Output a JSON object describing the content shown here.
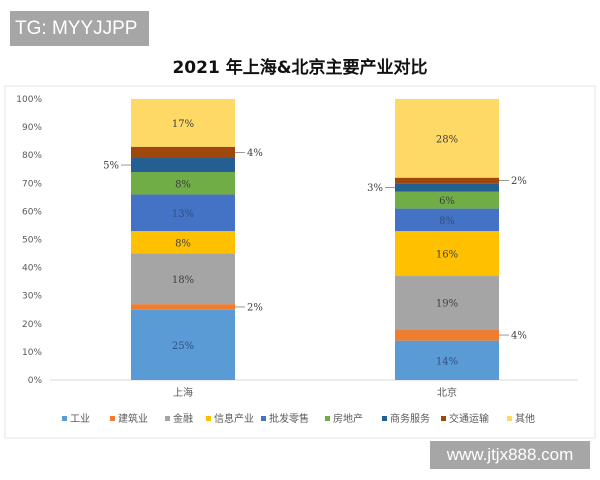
{
  "watermark_top": "TG: MYYJJPP",
  "watermark_bottom": "www.jtjx888.com",
  "chart_data": {
    "type": "stacked-bar-100",
    "title": "2021 年上海&北京主要产业对比",
    "categories": [
      "上海",
      "北京"
    ],
    "ylim": [
      0,
      100
    ],
    "yticks": [
      "0%",
      "10%",
      "20%",
      "30%",
      "40%",
      "50%",
      "60%",
      "70%",
      "80%",
      "90%",
      "100%"
    ],
    "grid": false,
    "legend_position": "bottom",
    "series": [
      {
        "name": "工业",
        "color": "#5b9bd5",
        "values": [
          25,
          14
        ]
      },
      {
        "name": "建筑业",
        "color": "#ed7d31",
        "values": [
          2,
          4
        ]
      },
      {
        "name": "金融",
        "color": "#a5a5a5",
        "values": [
          18,
          19
        ]
      },
      {
        "name": "信息产业",
        "color": "#ffc000",
        "values": [
          8,
          16
        ]
      },
      {
        "name": "批发零售",
        "color": "#4472c4",
        "values": [
          13,
          8
        ]
      },
      {
        "name": "房地产",
        "color": "#70ad47",
        "values": [
          8,
          6
        ]
      },
      {
        "name": "商务服务",
        "color": "#255e91",
        "values": [
          5,
          3
        ]
      },
      {
        "name": "交通运输",
        "color": "#9e480e",
        "values": [
          4,
          2
        ]
      },
      {
        "name": "其他",
        "color": "#ffd966",
        "values": [
          17,
          28
        ]
      }
    ]
  }
}
